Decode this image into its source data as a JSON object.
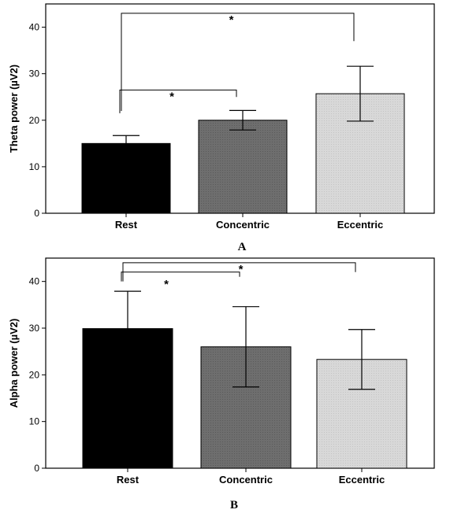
{
  "chart_data": [
    {
      "panel": "A",
      "type": "bar",
      "categories": [
        "Rest",
        "Concentric",
        "Eccentric"
      ],
      "values": [
        15.0,
        20.0,
        25.7
      ],
      "error": [
        1.7,
        2.1,
        5.9
      ],
      "colors": [
        "#000000",
        "#6e6e6e",
        "#d8d8d8"
      ],
      "ylabel": "Theta power (µV2)",
      "ylim": [
        0,
        45
      ],
      "yticks": [
        0,
        10,
        20,
        30,
        40
      ],
      "grid": false,
      "significance": [
        {
          "from": "Rest",
          "to": "Concentric",
          "label": "*",
          "level": 26.5,
          "left_foot": 21.5,
          "right_foot": 25.0
        },
        {
          "from": "Rest",
          "to": "Eccentric",
          "label": "*",
          "level": 43.0,
          "left_foot": 22.0,
          "right_foot": 37.0
        }
      ]
    },
    {
      "panel": "B",
      "type": "bar",
      "categories": [
        "Rest",
        "Concentric",
        "Eccentric"
      ],
      "values": [
        29.9,
        26.0,
        23.3
      ],
      "error": [
        8.0,
        8.6,
        6.4
      ],
      "colors": [
        "#000000",
        "#6e6e6e",
        "#d8d8d8"
      ],
      "ylabel": "Alpha power (µV2)",
      "ylim": [
        0,
        45
      ],
      "yticks": [
        0,
        10,
        20,
        30,
        40
      ],
      "grid": false,
      "significance": [
        {
          "from": "Rest",
          "to": "Concentric",
          "label": "*",
          "level": 42.0,
          "left_foot": 40.0,
          "right_foot": 41.0
        },
        {
          "from": "Rest",
          "to": "Eccentric",
          "label": "*",
          "level": 44.0,
          "left_foot": 40.0,
          "right_foot": 42.0
        }
      ]
    }
  ],
  "panel_labels": {
    "a": "A",
    "b": "B"
  }
}
